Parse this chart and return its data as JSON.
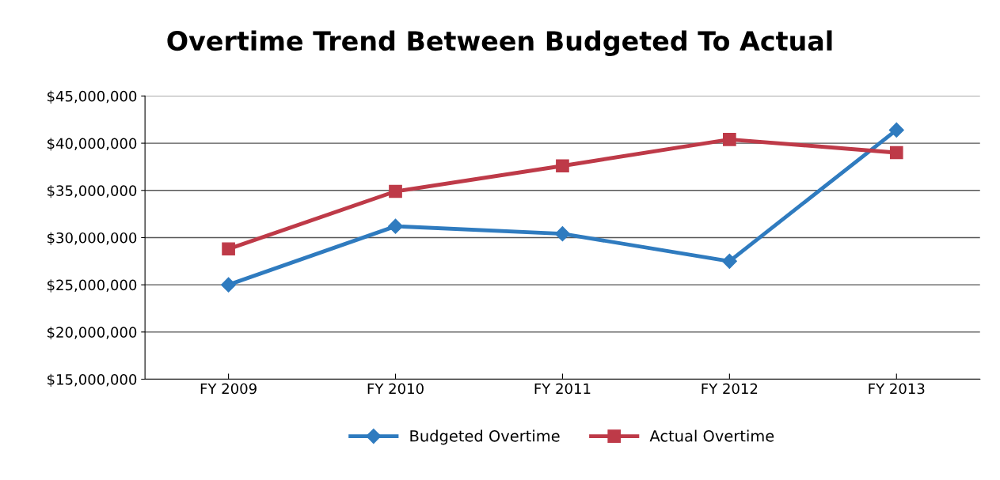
{
  "chart_data": {
    "type": "line",
    "title": "Overtime Trend Between Budgeted To Actual",
    "categories": [
      "FY 2009",
      "FY 2010",
      "FY 2011",
      "FY 2012",
      "FY 2013"
    ],
    "series": [
      {
        "name": "Budgeted Overtime",
        "color": "#2f7bbf",
        "marker": "diamond",
        "values": [
          25000000,
          31200000,
          30400000,
          27500000,
          41400000
        ]
      },
      {
        "name": "Actual Overtime",
        "color": "#be3a48",
        "marker": "square",
        "values": [
          28800000,
          34900000,
          37600000,
          40400000,
          39000000
        ]
      }
    ],
    "ylim": [
      15000000,
      45000000
    ],
    "yticks": [
      {
        "value": 15000000,
        "label": "$15,000,000"
      },
      {
        "value": 20000000,
        "label": "$20,000,000"
      },
      {
        "value": 25000000,
        "label": "$25,000,000"
      },
      {
        "value": 30000000,
        "label": "$30,000,000"
      },
      {
        "value": 35000000,
        "label": "$35,000,000"
      },
      {
        "value": 40000000,
        "label": "$40,000,000"
      },
      {
        "value": 45000000,
        "label": "$45,000,000"
      }
    ],
    "grid": "y",
    "legend": "bottom",
    "line_style": "solid"
  }
}
